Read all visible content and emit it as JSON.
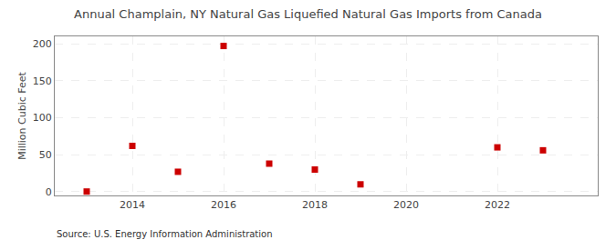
{
  "chart_data": {
    "type": "scatter",
    "title": "Annual Champlain, NY Natural Gas Liquefied Natural Gas Imports from Canada",
    "ylabel": "Million Cubic Feet",
    "source": "Source: U.S. Energy Information Administration",
    "x": [
      2013,
      2014,
      2015,
      2016,
      2017,
      2018,
      2019,
      2022,
      2023
    ],
    "values": [
      0.3,
      62,
      27,
      197,
      38,
      30,
      10,
      60,
      56
    ],
    "color": "#cc0000",
    "marker": "square",
    "xlim": [
      2012.3,
      2024.2
    ],
    "ylim": [
      -5,
      210
    ],
    "xticks": [
      2014,
      2016,
      2018,
      2020,
      2022
    ],
    "yticks": [
      0,
      50,
      100,
      150,
      200
    ],
    "grid": true
  }
}
